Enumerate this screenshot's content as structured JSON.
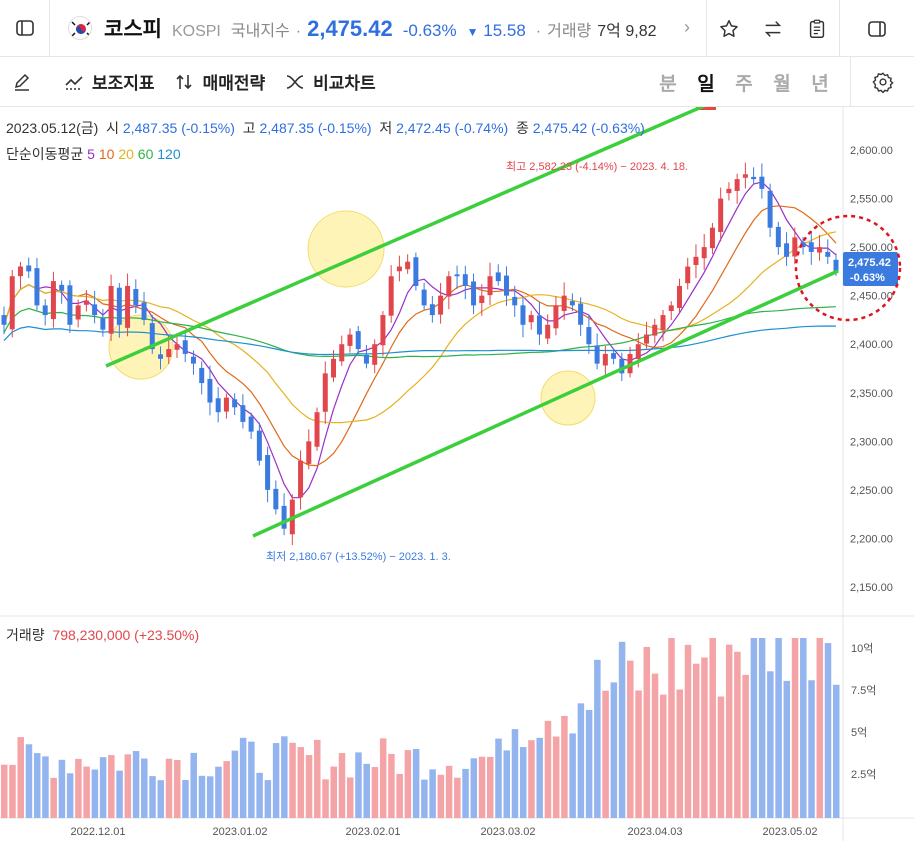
{
  "header": {
    "name": "코스피",
    "code": "KOSPI",
    "category": "국내지수",
    "price": "2,475.42",
    "change_pct": "-0.63%",
    "change_arrow": "▼",
    "change_abs": "15.58",
    "volume_label": "거래량",
    "volume_value": "7억 9,82",
    "more_glyph": "›"
  },
  "toolbar": {
    "indicator_label": "보조지표",
    "strategy_label": "매매전략",
    "compare_label": "비교차트",
    "periods": [
      "분",
      "일",
      "주",
      "월",
      "년"
    ],
    "active_period": "일"
  },
  "ohlc": {
    "date": "2023.05.12(금)",
    "open_label": "시",
    "open": "2,487.35 (-0.15%)",
    "high_label": "고",
    "high": "2,487.35 (-0.15%)",
    "low_label": "저",
    "low": "2,472.45 (-0.74%)",
    "close_label": "종",
    "close": "2,475.42 (-0.63%)"
  },
  "ma_legend": {
    "title": "단순이동평균",
    "periods": [
      {
        "label": "5",
        "color": "#9b2fc9"
      },
      {
        "label": "10",
        "color": "#e06a1b"
      },
      {
        "label": "20",
        "color": "#e7b21f"
      },
      {
        "label": "60",
        "color": "#2fb24a"
      },
      {
        "label": "120",
        "color": "#1f8fd0"
      }
    ]
  },
  "annotations": {
    "high": "최고 2,582.23 (-4.14%) − 2023. 4. 18.",
    "low": "최저 2,180.67 (+13.52%) − 2023. 1. 3.",
    "last_price": "2,475.42",
    "last_pct": "-0.63%"
  },
  "volume": {
    "label": "거래량",
    "value": "798,230,000 (+23.50%)",
    "axis": [
      "10억",
      "7.5억",
      "5억",
      "2.5억"
    ]
  },
  "colors": {
    "up": "#e0464b",
    "down": "#3b7be0",
    "trend": "#3ccf3c",
    "highlight": "#fff0a0"
  },
  "chart_data": {
    "type": "candlestick",
    "y_ticks": [
      "2,600.00",
      "2,550.00",
      "2,500.00",
      "2,450.00",
      "2,400.00",
      "2,350.00",
      "2,300.00",
      "2,250.00",
      "2,200.00",
      "2,150.00"
    ],
    "ylim": [
      2130,
      2620
    ],
    "x_ticks": [
      "2022.12.01",
      "2023.01.02",
      "2023.02.01",
      "2023.03.02",
      "2023.04.03",
      "2023.05.02"
    ],
    "closes": [
      2420,
      2470,
      2480,
      2475,
      2440,
      2430,
      2465,
      2455,
      2420,
      2440,
      2445,
      2430,
      2415,
      2460,
      2420,
      2460,
      2440,
      2425,
      2395,
      2385,
      2395,
      2400,
      2390,
      2380,
      2360,
      2340,
      2330,
      2345,
      2335,
      2320,
      2310,
      2280,
      2250,
      2230,
      2210,
      2240,
      2280,
      2300,
      2330,
      2370,
      2385,
      2400,
      2410,
      2395,
      2380,
      2400,
      2430,
      2470,
      2480,
      2485,
      2460,
      2440,
      2430,
      2450,
      2470,
      2470,
      2460,
      2440,
      2450,
      2470,
      2465,
      2450,
      2440,
      2420,
      2430,
      2410,
      2420,
      2440,
      2450,
      2440,
      2420,
      2400,
      2380,
      2390,
      2385,
      2370,
      2390,
      2400,
      2410,
      2420,
      2430,
      2440,
      2460,
      2480,
      2490,
      2500,
      2520,
      2550,
      2560,
      2570,
      2575,
      2570,
      2560,
      2520,
      2500,
      2490,
      2510,
      2500,
      2495,
      2500,
      2490,
      2475
    ]
  }
}
